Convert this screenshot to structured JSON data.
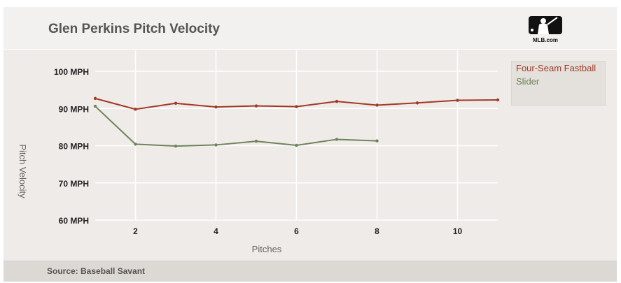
{
  "header": {
    "title": "Glen Perkins Pitch Velocity",
    "logo_text": "MLB.com"
  },
  "footer": {
    "source": "Source: Baseball Savant"
  },
  "chart_data": {
    "type": "line",
    "title": "Glen Perkins Pitch Velocity",
    "xlabel": "Pitches",
    "ylabel": "Pitch Velocity",
    "xlim": [
      1,
      11
    ],
    "ylim": [
      60,
      100
    ],
    "xticks": [
      2,
      4,
      6,
      8,
      10
    ],
    "yticks": [
      {
        "v": 60,
        "label": "60 MPH"
      },
      {
        "v": 70,
        "label": "70 MPH"
      },
      {
        "v": 80,
        "label": "80 MPH"
      },
      {
        "v": 90,
        "label": "90 MPH"
      },
      {
        "v": 100,
        "label": "100 MPH"
      }
    ],
    "legend_position": "top-right",
    "series": [
      {
        "name": "Four-Seam Fastball",
        "color": "#a03a26",
        "x": [
          1,
          2,
          3,
          4,
          5,
          6,
          7,
          8,
          9,
          10,
          11
        ],
        "values": [
          92.7,
          89.8,
          91.4,
          90.4,
          90.7,
          90.5,
          91.9,
          90.9,
          91.5,
          92.2,
          92.3
        ]
      },
      {
        "name": "Slider",
        "color": "#6e8459",
        "x": [
          1,
          2,
          3,
          4,
          5,
          6,
          7,
          8
        ],
        "values": [
          90.6,
          80.4,
          79.9,
          80.2,
          81.2,
          80.1,
          81.7,
          81.3
        ]
      }
    ]
  }
}
